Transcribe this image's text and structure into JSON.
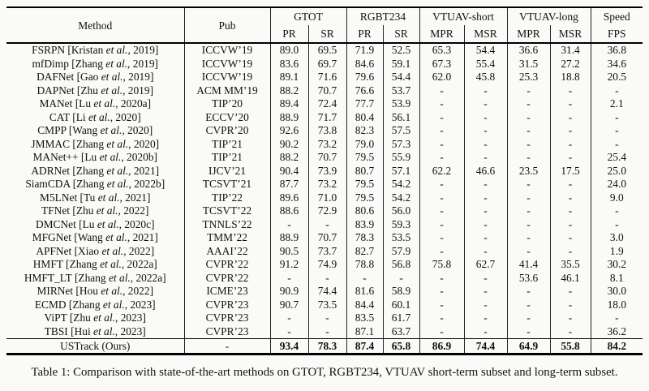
{
  "colors": {
    "background": "#fafaf8",
    "text": "#111111",
    "rule": "#000000"
  },
  "table": {
    "caption": "Table 1: Comparison with state-of-the-art methods on GTOT, RGBT234, VTUAV short-term subset and long-term subset.",
    "header": {
      "method": "Method",
      "pub": "Pub",
      "groups": [
        {
          "label": "GTOT",
          "sub": [
            "PR",
            "SR"
          ]
        },
        {
          "label": "RGBT234",
          "sub": [
            "PR",
            "SR"
          ]
        },
        {
          "label": "VTUAV-short",
          "sub": [
            "MPR",
            "MSR"
          ]
        },
        {
          "label": "VTUAV-long",
          "sub": [
            "MPR",
            "MSR"
          ]
        },
        {
          "label": "Speed",
          "sub": [
            "FPS"
          ]
        }
      ]
    },
    "rows": [
      {
        "method": [
          "FSRPN [Kristan ",
          "et al.",
          ", 2019]"
        ],
        "pub": "ICCVW’19",
        "values": [
          "89.0",
          "69.5",
          "71.9",
          "52.5",
          "65.3",
          "54.4",
          "36.6",
          "31.4",
          "36.8"
        ]
      },
      {
        "method": [
          "mfDimp [Zhang ",
          "et al.",
          ", 2019]"
        ],
        "pub": "ICCVW’19",
        "values": [
          "83.6",
          "69.7",
          "84.6",
          "59.1",
          "67.3",
          "55.4",
          "31.5",
          "27.2",
          "34.6"
        ]
      },
      {
        "method": [
          "DAFNet [Gao ",
          "et al.",
          ", 2019]"
        ],
        "pub": "ICCVW’19",
        "values": [
          "89.1",
          "71.6",
          "79.6",
          "54.4",
          "62.0",
          "45.8",
          "25.3",
          "18.8",
          "20.5"
        ]
      },
      {
        "method": [
          "DAPNet [Zhu ",
          "et al.",
          ", 2019]"
        ],
        "pub": "ACM MM’19",
        "values": [
          "88.2",
          "70.7",
          "76.6",
          "53.7",
          "-",
          "-",
          "-",
          "-",
          "-"
        ]
      },
      {
        "method": [
          "MANet [Lu ",
          "et al.",
          ", 2020a]"
        ],
        "pub": "TIP’20",
        "values": [
          "89.4",
          "72.4",
          "77.7",
          "53.9",
          "-",
          "-",
          "-",
          "-",
          "2.1"
        ]
      },
      {
        "method": [
          "CAT [Li ",
          "et al.",
          ", 2020]"
        ],
        "pub": "ECCV’20",
        "values": [
          "88.9",
          "71.7",
          "80.4",
          "56.1",
          "-",
          "-",
          "-",
          "-",
          "-"
        ]
      },
      {
        "method": [
          "CMPP [Wang ",
          "et al.",
          ", 2020]"
        ],
        "pub": "CVPR’20",
        "values": [
          "92.6",
          "73.8",
          "82.3",
          "57.5",
          "-",
          "-",
          "-",
          "-",
          "-"
        ]
      },
      {
        "method": [
          "JMMAC [Zhang ",
          "et al.",
          ", 2020]"
        ],
        "pub": "TIP’21",
        "values": [
          "90.2",
          "73.2",
          "79.0",
          "57.3",
          "-",
          "-",
          "-",
          "-",
          "-"
        ]
      },
      {
        "method": [
          "MANet++ [Lu ",
          "et al.",
          ", 2020b]"
        ],
        "pub": "TIP’21",
        "values": [
          "88.2",
          "70.7",
          "79.5",
          "55.9",
          "-",
          "-",
          "-",
          "-",
          "25.4"
        ]
      },
      {
        "method": [
          "ADRNet [Zhang ",
          "et al.",
          ", 2021]"
        ],
        "pub": "IJCV’21",
        "values": [
          "90.4",
          "73.9",
          "80.7",
          "57.1",
          "62.2",
          "46.6",
          "23.5",
          "17.5",
          "25.0"
        ]
      },
      {
        "method": [
          "SiamCDA [Zhang ",
          "et al.",
          ", 2022b]"
        ],
        "pub": "TCSVT’21",
        "values": [
          "87.7",
          "73.2",
          "79.5",
          "54.2",
          "-",
          "-",
          "-",
          "-",
          "24.0"
        ]
      },
      {
        "method": [
          "M5LNet [Tu ",
          "et al.",
          ", 2021]"
        ],
        "pub": "TIP’22",
        "values": [
          "89.6",
          "71.0",
          "79.5",
          "54.2",
          "-",
          "-",
          "-",
          "-",
          "9.0"
        ]
      },
      {
        "method": [
          "TFNet [Zhu ",
          "et al.",
          ", 2022]"
        ],
        "pub": "TCSVT’22",
        "values": [
          "88.6",
          "72.9",
          "80.6",
          "56.0",
          "-",
          "-",
          "-",
          "-",
          "-"
        ]
      },
      {
        "method": [
          "DMCNet [Lu ",
          "et al.",
          ", 2020c]"
        ],
        "pub": "TNNLS’22",
        "values": [
          "-",
          "-",
          "83.9",
          "59.3",
          "-",
          "-",
          "-",
          "-",
          "-"
        ]
      },
      {
        "method": [
          "MFGNet [Wang ",
          "et al.",
          ", 2021]"
        ],
        "pub": "TMM’22",
        "values": [
          "88.9",
          "70.7",
          "78.3",
          "53.5",
          "-",
          "-",
          "-",
          "-",
          "3.0"
        ]
      },
      {
        "method": [
          "APFNet [Xiao ",
          "et al.",
          ", 2022]"
        ],
        "pub": "AAAI’22",
        "values": [
          "90.5",
          "73.7",
          "82.7",
          "57.9",
          "-",
          "-",
          "-",
          "-",
          "1.9"
        ]
      },
      {
        "method": [
          "HMFT [Zhang ",
          "et al.",
          ", 2022a]"
        ],
        "pub": "CVPR’22",
        "values": [
          "91.2",
          "74.9",
          "78.8",
          "56.8",
          "75.8",
          "62.7",
          "41.4",
          "35.5",
          "30.2"
        ]
      },
      {
        "method": [
          "HMFT_LT [Zhang ",
          "et al.",
          ", 2022a]"
        ],
        "pub": "CVPR’22",
        "values": [
          "-",
          "-",
          "-",
          "-",
          "-",
          "-",
          "53.6",
          "46.1",
          "8.1"
        ]
      },
      {
        "method": [
          "MIRNet [Hou ",
          "et al.",
          ", 2022]"
        ],
        "pub": "ICME’23",
        "values": [
          "90.9",
          "74.4",
          "81.6",
          "58.9",
          "-",
          "-",
          "-",
          "-",
          "30.0"
        ]
      },
      {
        "method": [
          "ECMD [Zhang ",
          "et al.",
          ", 2023]"
        ],
        "pub": "CVPR’23",
        "values": [
          "90.7",
          "73.5",
          "84.4",
          "60.1",
          "-",
          "-",
          "-",
          "-",
          "18.0"
        ]
      },
      {
        "method": [
          "ViPT [Zhu ",
          "et al.",
          ", 2023]"
        ],
        "pub": "CVPR’23",
        "values": [
          "-",
          "-",
          "83.5",
          "61.7",
          "-",
          "-",
          "-",
          "-",
          "-"
        ]
      },
      {
        "method": [
          "TBSI [Hui ",
          "et al.",
          ", 2023]"
        ],
        "pub": "CVPR’23",
        "values": [
          "-",
          "-",
          "87.1",
          "63.7",
          "-",
          "-",
          "-",
          "-",
          "36.2"
        ]
      }
    ],
    "footer": {
      "method": "USTrack (Ours)",
      "pub": "-",
      "values": [
        "93.4",
        "78.3",
        "87.4",
        "65.8",
        "86.9",
        "74.4",
        "64.9",
        "55.8",
        "84.2"
      ]
    }
  }
}
